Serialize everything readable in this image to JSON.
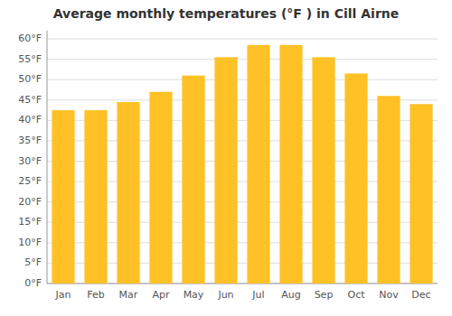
{
  "chart_data": {
    "type": "bar",
    "title": "Average monthly temperatures (°F ) in Cill Airne",
    "categories": [
      "Jan",
      "Feb",
      "Mar",
      "Apr",
      "May",
      "Jun",
      "Jul",
      "Aug",
      "Sep",
      "Oct",
      "Nov",
      "Dec"
    ],
    "values": [
      42.5,
      42.5,
      44.5,
      47.0,
      51.0,
      55.5,
      58.5,
      58.5,
      55.5,
      51.5,
      46.0,
      44.0
    ],
    "color": "#FFC125",
    "ylim": [
      0,
      62
    ],
    "yticks": [
      {
        "value": 0,
        "label": "0°F"
      },
      {
        "value": 5,
        "label": "5°F"
      },
      {
        "value": 10,
        "label": "10°F"
      },
      {
        "value": 15,
        "label": "15°F"
      },
      {
        "value": 20,
        "label": "20°F"
      },
      {
        "value": 25,
        "label": "25°F"
      },
      {
        "value": 30,
        "label": "30°F"
      },
      {
        "value": 35,
        "label": "35°F"
      },
      {
        "value": 40,
        "label": "40°F"
      },
      {
        "value": 45,
        "label": "45°F"
      },
      {
        "value": 50,
        "label": "50°F"
      },
      {
        "value": 55,
        "label": "55°F"
      },
      {
        "value": 60,
        "label": "60°F"
      }
    ],
    "grid": true
  }
}
